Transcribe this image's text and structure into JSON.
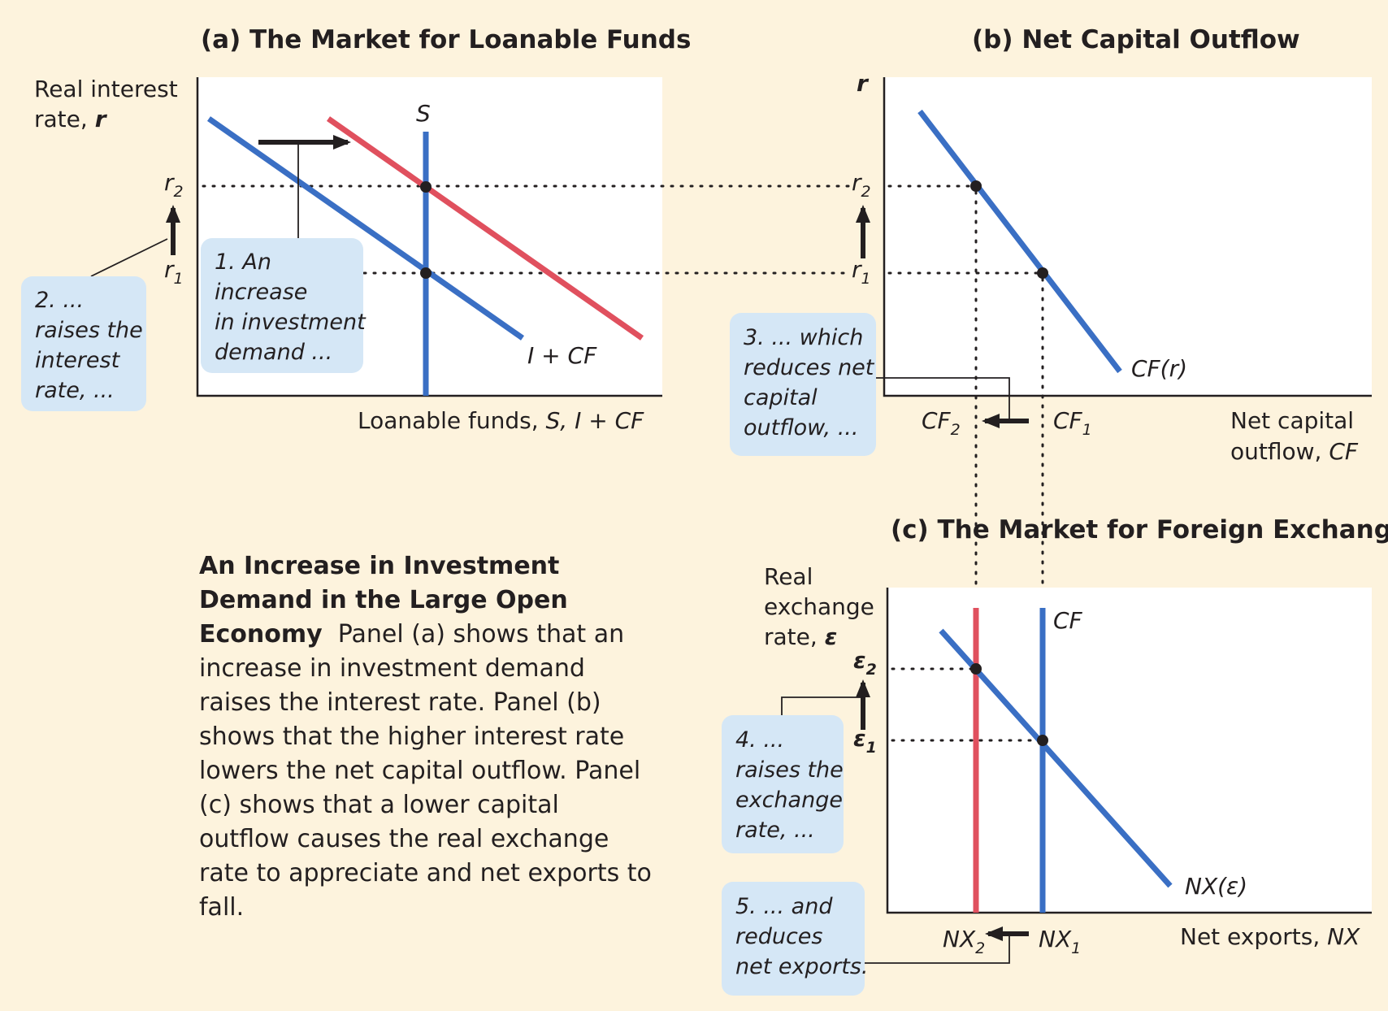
{
  "panel_a": {
    "title": "(a) The Market for Loanable Funds",
    "ylabel_line1": "Real interest",
    "ylabel_line2": "rate, ",
    "ylabel_var": "r",
    "xlabel_text": "Loanable funds, ",
    "xlabel_var": "S, I + CF",
    "curve_S": "S",
    "curve_demand": "I + CF",
    "r2": "r",
    "r2_sub": "2",
    "r1": "r",
    "r1_sub": "1",
    "note1": [
      "1. An",
      "increase",
      "in investment",
      "demand ..."
    ],
    "note2": [
      "2. ...",
      "raises the",
      "interest",
      "rate, ..."
    ]
  },
  "panel_b": {
    "title": "(b) Net Capital Outflow",
    "ylabel": "r",
    "r2": "r",
    "r2_sub": "2",
    "r1": "r",
    "r1_sub": "1",
    "curve": "CF(",
    "curve_var": "r",
    "curve_close": ")",
    "cf2": "CF",
    "cf2_sub": "2",
    "cf1": "CF",
    "cf1_sub": "1",
    "xlabel_line1": "Net capital",
    "xlabel_line2": "outflow, ",
    "xlabel_var": "CF",
    "note3": [
      "3. ... which",
      "reduces net",
      "capital",
      "outflow, ..."
    ]
  },
  "panel_c": {
    "title": "(c) The Market for Foreign Exchange",
    "ylabel_line1": "Real",
    "ylabel_line2": "exchange",
    "ylabel_line3": "rate, ",
    "ylabel_var": "ε",
    "e2": "ε",
    "e2_sub": "2",
    "e1": "ε",
    "e1_sub": "1",
    "curve_CF": "CF",
    "curve_NX": "NX(ε)",
    "nx2": "NX",
    "nx2_sub": "2",
    "nx1": "NX",
    "nx1_sub": "1",
    "xlabel_text": "Net exports, ",
    "xlabel_var": "NX",
    "note4": [
      "4. ...",
      "raises the",
      "exchange",
      "rate, ..."
    ],
    "note5": [
      "5. ... and",
      "reduces",
      "net exports."
    ]
  },
  "caption": {
    "title": "An Increase in Investment Demand in the Large Open Economy",
    "body": "Panel (a) shows that an increase in investment demand raises the interest rate. Panel (b) shows that the higher interest rate lowers the net capital outflow. Panel (c) shows that a lower capital outflow causes the real exchange rate to appreciate and net exports to fall."
  },
  "colors": {
    "background": "#fdf3dd",
    "blue": "#3a6fc4",
    "red": "#e0505e",
    "callout": "#d5e7f6"
  }
}
